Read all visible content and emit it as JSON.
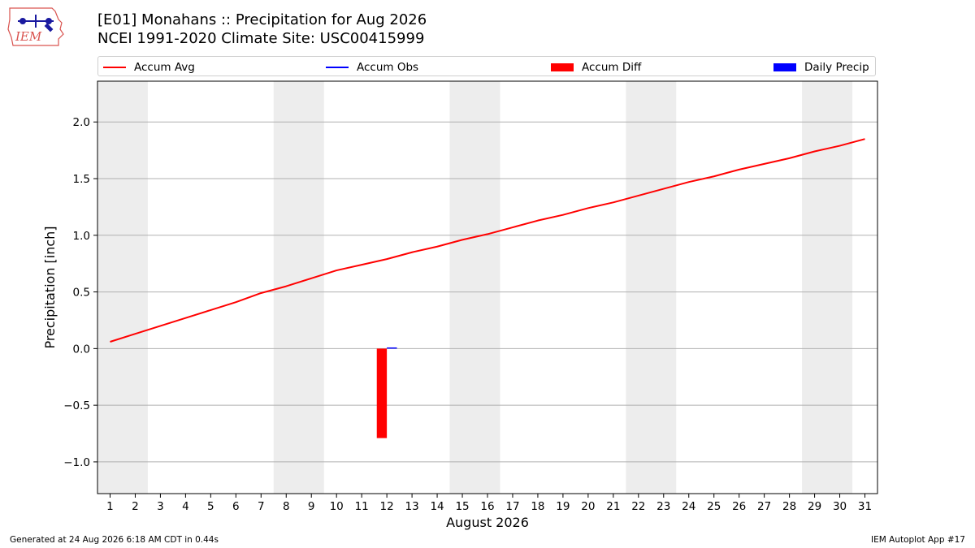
{
  "header": {
    "title_line1": "[E01] Monahans :: Precipitation for Aug 2026",
    "title_line2": "NCEI 1991-2020 Climate Site: USC00415999",
    "logo_text": "IEM"
  },
  "legend": [
    {
      "label": "Accum Avg",
      "color": "#ff0000",
      "kind": "line"
    },
    {
      "label": "Accum Obs",
      "color": "#0000ff",
      "kind": "line"
    },
    {
      "label": "Accum Diff",
      "color": "#ff0000",
      "kind": "box"
    },
    {
      "label": "Daily Precip",
      "color": "#0000ff",
      "kind": "box"
    }
  ],
  "footer": {
    "generated": "Generated at 24 Aug 2026 6:18 AM CDT in 0.44s",
    "app": "IEM Autoplot App #17"
  },
  "chart_data": {
    "type": "line",
    "xlabel": "August 2026",
    "ylabel": "Precipitation [inch]",
    "xlim": [
      0.5,
      31.5
    ],
    "ylim": [
      -1.28,
      2.36
    ],
    "x": [
      1,
      2,
      3,
      4,
      5,
      6,
      7,
      8,
      9,
      10,
      11,
      12,
      13,
      14,
      15,
      16,
      17,
      18,
      19,
      20,
      21,
      22,
      23,
      24,
      25,
      26,
      27,
      28,
      29,
      30,
      31
    ],
    "xticks": [
      "1",
      "2",
      "3",
      "4",
      "5",
      "6",
      "7",
      "8",
      "9",
      "10",
      "11",
      "12",
      "13",
      "14",
      "15",
      "16",
      "17",
      "18",
      "19",
      "20",
      "21",
      "22",
      "23",
      "24",
      "25",
      "26",
      "27",
      "28",
      "29",
      "30",
      "31"
    ],
    "yticks": [
      {
        "value": -1.0,
        "label": "−1.0"
      },
      {
        "value": -0.5,
        "label": "−0.5"
      },
      {
        "value": 0.0,
        "label": "0.0"
      },
      {
        "value": 0.5,
        "label": "0.5"
      },
      {
        "value": 1.0,
        "label": "1.0"
      },
      {
        "value": 1.5,
        "label": "1.5"
      },
      {
        "value": 2.0,
        "label": "2.0"
      }
    ],
    "grid": "horizontal",
    "weekend_shading": [
      [
        0.5,
        2.5
      ],
      [
        7.5,
        9.5
      ],
      [
        14.5,
        16.5
      ],
      [
        21.5,
        23.5
      ],
      [
        28.5,
        30.5
      ]
    ],
    "series": [
      {
        "name": "Accum Avg",
        "type": "line",
        "color": "#ff0000",
        "values": [
          0.06,
          0.13,
          0.2,
          0.27,
          0.34,
          0.41,
          0.49,
          0.55,
          0.62,
          0.69,
          0.74,
          0.79,
          0.85,
          0.9,
          0.96,
          1.01,
          1.07,
          1.13,
          1.18,
          1.24,
          1.29,
          1.35,
          1.41,
          1.47,
          1.52,
          1.58,
          1.63,
          1.68,
          1.74,
          1.79,
          1.85
        ]
      },
      {
        "name": "Accum Obs",
        "type": "line",
        "color": "#0000ff",
        "x": [
          1,
          2,
          3,
          4,
          5,
          6,
          7,
          8,
          9,
          10,
          11,
          12
        ],
        "values": [
          0,
          0,
          0,
          0,
          0,
          0,
          0,
          0,
          0,
          0,
          0,
          0
        ]
      },
      {
        "name": "Accum Diff",
        "type": "bar",
        "color": "#ff0000",
        "x": [
          11.8
        ],
        "values": [
          -0.79
        ]
      },
      {
        "name": "Daily Precip",
        "type": "bar",
        "color": "#0000ff",
        "x": [
          12.2
        ],
        "values": [
          0.01
        ]
      }
    ]
  }
}
